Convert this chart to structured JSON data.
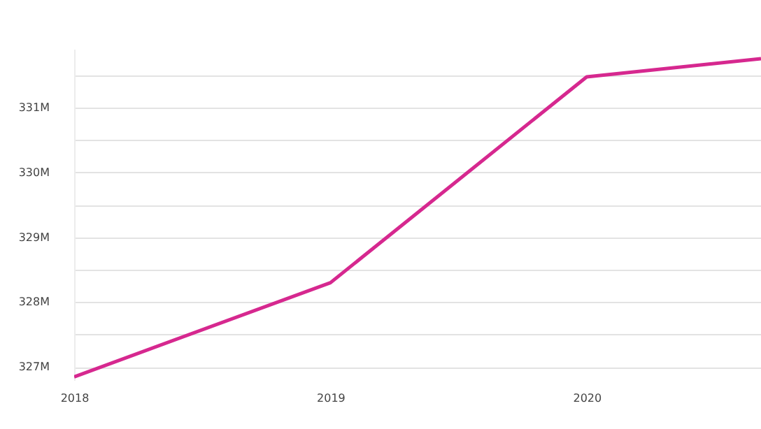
{
  "chart_data": {
    "type": "line",
    "x": [
      2018,
      2019,
      2020,
      2020.68
    ],
    "series": [
      {
        "color": "#d6288f",
        "values": [
          326.85,
          328.3,
          331.47,
          331.75
        ]
      }
    ],
    "xlim": [
      2018,
      2020.68
    ],
    "xticks": [
      2018,
      2019,
      2020
    ],
    "ylim": [
      326.8,
      331.9
    ],
    "yticks": [
      {
        "value": 327,
        "label": "327M"
      },
      {
        "value": 327.5,
        "label": null
      },
      {
        "value": 328,
        "label": "328M"
      },
      {
        "value": 328.5,
        "label": null
      },
      {
        "value": 329,
        "label": "329M"
      },
      {
        "value": 329.5,
        "label": null
      },
      {
        "value": 330,
        "label": "330M"
      },
      {
        "value": 330.5,
        "label": null
      },
      {
        "value": 331,
        "label": "331M"
      },
      {
        "value": 331.5,
        "label": null
      }
    ],
    "grid": "y",
    "marker": "none",
    "line_style": "solid"
  }
}
